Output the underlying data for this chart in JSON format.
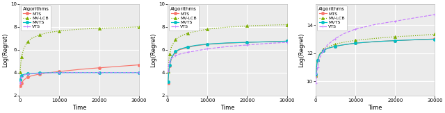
{
  "time_points": [
    100,
    300,
    500,
    1000,
    2000,
    3000,
    5000,
    7000,
    10000,
    15000,
    20000,
    25000,
    30000
  ],
  "panel1": {
    "xlabel": "Time",
    "ylabel": "Log(Regret)",
    "xlim": [
      0,
      30000
    ],
    "ylim": [
      2,
      10
    ],
    "yticks": [
      2,
      4,
      6,
      8,
      10
    ],
    "MTS": [
      2.85,
      3.0,
      3.1,
      3.35,
      3.6,
      3.72,
      3.88,
      3.98,
      4.1,
      4.28,
      4.42,
      4.55,
      4.68
    ],
    "MV_LCB": [
      4.05,
      4.9,
      5.4,
      6.1,
      6.7,
      7.0,
      7.3,
      7.5,
      7.65,
      7.8,
      7.88,
      7.93,
      8.0
    ],
    "MVTS": [
      3.35,
      3.6,
      3.72,
      3.85,
      3.9,
      3.93,
      3.97,
      3.99,
      4.0,
      4.0,
      4.0,
      4.0,
      4.0
    ],
    "VTS": [
      3.05,
      3.45,
      3.62,
      3.78,
      3.87,
      3.9,
      3.95,
      3.98,
      4.0,
      4.0,
      4.0,
      4.0,
      4.0
    ]
  },
  "panel2": {
    "xlabel": "Time",
    "ylabel": "Log(Regret)",
    "xlim": [
      0,
      30000
    ],
    "ylim": [
      2,
      10
    ],
    "yticks": [
      2,
      4,
      6,
      8,
      10
    ],
    "MTS": [
      3.1,
      4.1,
      4.6,
      5.3,
      5.8,
      6.0,
      6.2,
      6.35,
      6.48,
      6.58,
      6.65,
      6.7,
      6.75
    ],
    "MV_LCB": [
      4.1,
      5.1,
      5.6,
      6.3,
      6.9,
      7.15,
      7.45,
      7.6,
      7.8,
      7.98,
      8.08,
      8.15,
      8.2
    ],
    "MVTS": [
      3.2,
      4.1,
      4.65,
      5.35,
      5.85,
      6.05,
      6.25,
      6.38,
      6.5,
      6.6,
      6.65,
      6.7,
      6.75
    ],
    "VTS": [
      4.1,
      4.7,
      4.95,
      5.25,
      5.5,
      5.62,
      5.78,
      5.9,
      6.08,
      6.28,
      6.42,
      6.55,
      6.65
    ]
  },
  "panel3": {
    "xlabel": "Time",
    "ylabel": "Log(Regret)",
    "xlim": [
      0,
      30000
    ],
    "ylim": [
      9,
      15.5
    ],
    "yticks": [
      10,
      12,
      14
    ],
    "MTS": [
      10.4,
      11.2,
      11.5,
      11.9,
      12.2,
      12.35,
      12.5,
      12.6,
      12.72,
      12.83,
      12.9,
      12.96,
      13.02
    ],
    "MV_LCB": [
      10.4,
      11.2,
      11.55,
      11.95,
      12.3,
      12.45,
      12.65,
      12.78,
      12.92,
      13.06,
      13.18,
      13.25,
      13.35
    ],
    "MVTS": [
      10.5,
      11.2,
      11.5,
      11.9,
      12.2,
      12.35,
      12.5,
      12.6,
      12.72,
      12.83,
      12.9,
      12.96,
      13.0
    ],
    "VTS": [
      9.85,
      10.6,
      11.0,
      11.65,
      12.2,
      12.6,
      13.05,
      13.38,
      13.72,
      14.05,
      14.28,
      14.52,
      14.75
    ]
  },
  "colors": {
    "MTS": "#F8766D",
    "MV_LCB": "#7CAE00",
    "MVTS": "#00BFC4",
    "VTS": "#C77CFF"
  },
  "bg_color": "#EBEBEB",
  "grid_color": "#FFFFFF",
  "panel_border_color": "#BEBEBE"
}
